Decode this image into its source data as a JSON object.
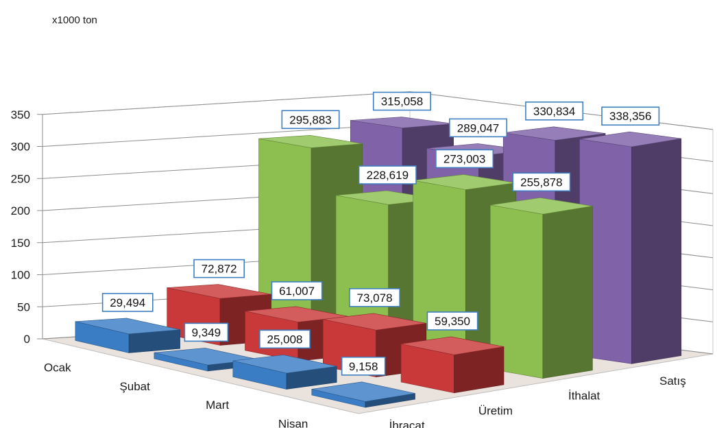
{
  "chart_data": {
    "type": "bar",
    "subtype": "3d-column",
    "unit_label": "x1000 ton",
    "y_ticks": [
      "0",
      "50",
      "100",
      "150",
      "200",
      "250",
      "300",
      "350"
    ],
    "ylim": [
      0,
      350
    ],
    "grid": true,
    "categories": [
      "İhracat",
      "Üretim",
      "İthalat",
      "Satış"
    ],
    "series": [
      {
        "name": "Ocak",
        "values": [
          29494,
          72872,
          295883,
          315058
        ],
        "labels": [
          "29,494",
          "72,872",
          "295,883",
          "315,058"
        ]
      },
      {
        "name": "Şubat",
        "values": [
          9349,
          61007,
          228619,
          289047
        ],
        "labels": [
          "9,349",
          "61,007",
          "228,619",
          "289,047"
        ]
      },
      {
        "name": "Mart",
        "values": [
          25008,
          73078,
          273003,
          330834
        ],
        "labels": [
          "25,008",
          "73,078",
          "273,003",
          "330,834"
        ]
      },
      {
        "name": "Nisan",
        "values": [
          9158,
          59350,
          255878,
          338356
        ],
        "labels": [
          "9,158",
          "59,350",
          "255,878",
          "338,356"
        ]
      }
    ],
    "colors": {
      "İhracat": "#3b7dc4",
      "Üretim": "#c9393a",
      "İthalat": "#8cbf4f",
      "Satış": "#7f62a8"
    }
  }
}
